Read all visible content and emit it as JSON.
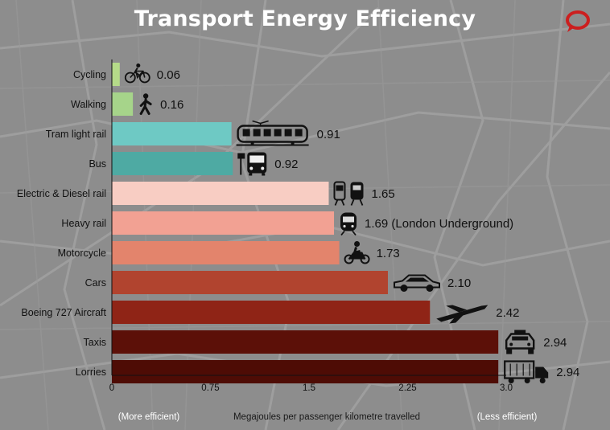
{
  "chart_data": {
    "type": "bar",
    "orientation": "horizontal",
    "title": "Transport Energy Efficiency",
    "xlabel": "Megajoules per passenger kilometre travelled",
    "x_left_note": "(More efficient)",
    "x_right_note": "(Less efficient)",
    "xlim": [
      0,
      3.0
    ],
    "xticks": [
      "0",
      "0.75",
      "1.5",
      "2.25",
      "3.0"
    ],
    "xtick_values": [
      0,
      0.75,
      1.5,
      2.25,
      3.0
    ],
    "grid": false,
    "categories": [
      "Cycling",
      "Walking",
      "Tram light rail",
      "Bus",
      "Electric & Diesel rail",
      "Heavy rail",
      "Motorcycle",
      "Cars",
      "Boeing 727 Aircraft",
      "Taxis",
      "Lorries"
    ],
    "values": [
      0.06,
      0.16,
      0.91,
      0.92,
      1.65,
      1.69,
      1.73,
      2.1,
      2.42,
      2.94,
      2.94
    ],
    "value_labels": [
      "0.06",
      "0.16",
      "0.91",
      "0.92",
      "1.65",
      "1.69 (London Underground)",
      "1.73",
      "2.10",
      "2.42",
      "2.94",
      "2.94"
    ],
    "icons": [
      "bicycle-icon",
      "pedestrian-icon",
      "tram-icon",
      "bus-stop-icon",
      "train-icon",
      "underground-train-icon",
      "motorcycle-icon",
      "car-icon",
      "airplane-icon",
      "taxi-icon",
      "lorry-icon"
    ],
    "colors": [
      "#b5db89",
      "#a6d48a",
      "#6ec9c4",
      "#4eaaa3",
      "#f8cdc3",
      "#f2a193",
      "#e3846c",
      "#b1442f",
      "#8f2416",
      "#5c1008",
      "#4e0c05"
    ]
  },
  "logo": {
    "icon": "speech-bubble-logo-icon",
    "color": "#cc1f1f"
  },
  "background_color": "#8d8d8d"
}
